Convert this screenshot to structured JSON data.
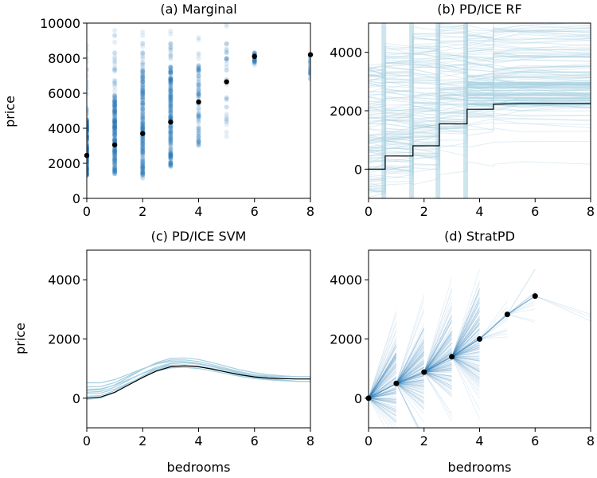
{
  "chart_data": [
    {
      "type": "scatter",
      "title": "(a) Marginal",
      "xlabel": "",
      "ylabel": "price",
      "xlim": [
        0,
        8
      ],
      "ylim": [
        0,
        10000
      ],
      "xticks": [
        "0",
        "2",
        "4",
        "6",
        "8"
      ],
      "yticks": [
        "0",
        "2000",
        "4000",
        "6000",
        "8000",
        "10000"
      ],
      "point_color": "#1f77b4",
      "mean_color": "#000000",
      "point_ranges": [
        {
          "x": 0,
          "low": 1200,
          "high": 9000,
          "dense_low": 1300,
          "dense_high": 4500
        },
        {
          "x": 1,
          "low": 1300,
          "high": 9600,
          "dense_low": 1400,
          "dense_high": 6000
        },
        {
          "x": 2,
          "low": 1100,
          "high": 10000,
          "dense_low": 1300,
          "dense_high": 7500
        },
        {
          "x": 3,
          "low": 1600,
          "high": 10000,
          "dense_low": 1800,
          "dense_high": 7500
        },
        {
          "x": 4,
          "low": 2500,
          "high": 9500,
          "dense_low": 3000,
          "dense_high": 7600
        },
        {
          "x": 5,
          "low": 3500,
          "high": 10000,
          "dense_low": 4000,
          "dense_high": 9000
        },
        {
          "x": 6,
          "low": 7500,
          "high": 8500,
          "dense_low": 7600,
          "dense_high": 8300
        },
        {
          "x": 8,
          "low": 6500,
          "high": 8400,
          "dense_low": 7000,
          "dense_high": 8300
        }
      ],
      "means": [
        {
          "x": 0,
          "y": 2450
        },
        {
          "x": 1,
          "y": 3050
        },
        {
          "x": 2,
          "y": 3700
        },
        {
          "x": 3,
          "y": 4350
        },
        {
          "x": 4,
          "y": 5500
        },
        {
          "x": 5,
          "y": 6650
        },
        {
          "x": 6,
          "y": 8100
        },
        {
          "x": 8,
          "y": 8200
        }
      ]
    },
    {
      "type": "line",
      "title": "(b) PD/ICE RF",
      "xlabel": "",
      "ylabel": "",
      "xlim": [
        0,
        8
      ],
      "ylim": [
        -1000,
        5000
      ],
      "xticks": [
        "0",
        "2",
        "4",
        "6",
        "8"
      ],
      "yticks": [
        "0",
        "2000",
        "4000"
      ],
      "ice_color": "#a6cfe0",
      "pd_color": "#000000",
      "pd_line": {
        "x": [
          0,
          0.6,
          0.6,
          1.6,
          1.6,
          2.55,
          2.55,
          3.55,
          3.55,
          4.5,
          4.5,
          5.5,
          8
        ],
        "y": [
          0,
          0,
          450,
          450,
          800,
          800,
          1550,
          1550,
          2050,
          2050,
          2220,
          2250,
          2250
        ]
      }
    },
    {
      "type": "line",
      "title": "(c) PD/ICE SVM",
      "xlabel": "bedrooms",
      "ylabel": "price",
      "xlim": [
        0,
        8
      ],
      "ylim": [
        -1000,
        5000
      ],
      "xticks": [
        "0",
        "2",
        "4",
        "6",
        "8"
      ],
      "yticks": [
        "0",
        "2000",
        "4000"
      ],
      "ice_color": "#a6cfe0",
      "pd_color": "#000000",
      "pd_line": {
        "x": [
          0,
          0.5,
          1,
          1.5,
          2,
          2.5,
          3,
          3.5,
          4,
          4.5,
          5,
          5.5,
          6,
          6.5,
          7,
          7.5,
          8
        ],
        "y": [
          0,
          40,
          200,
          450,
          700,
          920,
          1060,
          1090,
          1060,
          980,
          880,
          790,
          720,
          680,
          660,
          650,
          650
        ]
      }
    },
    {
      "type": "line",
      "title": "(d) StratPD",
      "xlabel": "bedrooms",
      "ylabel": "",
      "xlim": [
        0,
        8
      ],
      "ylim": [
        -1000,
        5000
      ],
      "xticks": [
        "0",
        "2",
        "4",
        "6",
        "8"
      ],
      "yticks": [
        "0",
        "2000",
        "4000"
      ],
      "line_color": "#1f77b4",
      "point_color": "#000000",
      "points": [
        {
          "x": 0,
          "y": 0
        },
        {
          "x": 1,
          "y": 500
        },
        {
          "x": 2,
          "y": 880
        },
        {
          "x": 3,
          "y": 1400
        },
        {
          "x": 4,
          "y": 2000
        },
        {
          "x": 5,
          "y": 2830
        },
        {
          "x": 6,
          "y": 3450
        }
      ]
    }
  ]
}
